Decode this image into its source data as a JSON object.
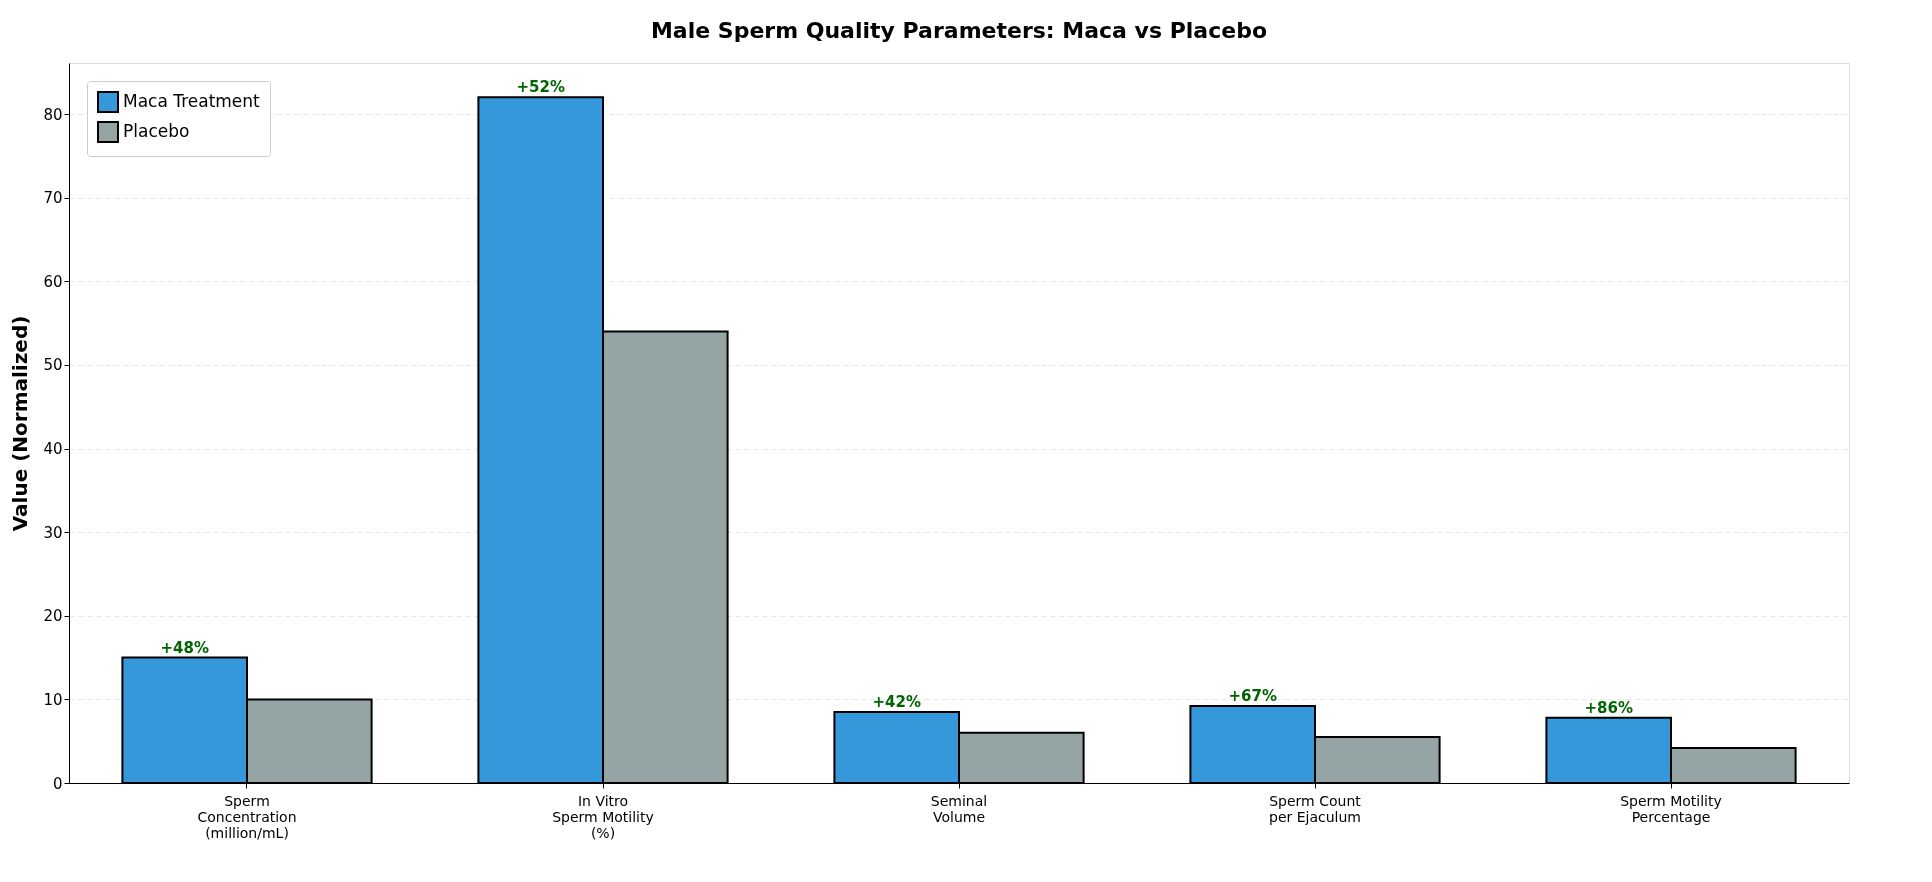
{
  "chart_data": {
    "type": "bar",
    "title": "Male Sperm Quality Parameters: Maca vs Placebo",
    "ylabel": "Value (Normalized)",
    "categories": [
      "Sperm\nConcentration\n(million/mL)",
      "In Vitro\nSperm Motility\n(%)",
      "Seminal\nVolume",
      "Sperm Count\nper Ejaculum",
      "Sperm Motility\nPercentage"
    ],
    "series": [
      {
        "name": "Maca Treatment",
        "color": "#3498db",
        "values": [
          15,
          82,
          8.5,
          9.2,
          7.8
        ]
      },
      {
        "name": "Placebo",
        "color": "#95a5a6",
        "values": [
          10,
          54,
          6,
          5.5,
          4.2
        ]
      }
    ],
    "ylim": [
      0,
      86.1
    ],
    "yticks": [
      0,
      10,
      20,
      30,
      40,
      50,
      60,
      70,
      80
    ],
    "grid": "y",
    "legend": "top left",
    "annotations": [
      {
        "text": "+48%",
        "x": "Sperm\nConcentration\n(million/mL)",
        "y": 15
      },
      {
        "text": "+52%",
        "x": "In Vitro\nSperm Motility\n(%)",
        "y": 82
      },
      {
        "text": "+42%",
        "x": "Seminal\nVolume",
        "y": 8.5
      },
      {
        "text": "+67%",
        "x": "Sperm Count\nper Ejaculum",
        "y": 9.2
      },
      {
        "text": "+86%",
        "x": "Sperm Motility\nPercentage",
        "y": 7.8
      }
    ]
  }
}
